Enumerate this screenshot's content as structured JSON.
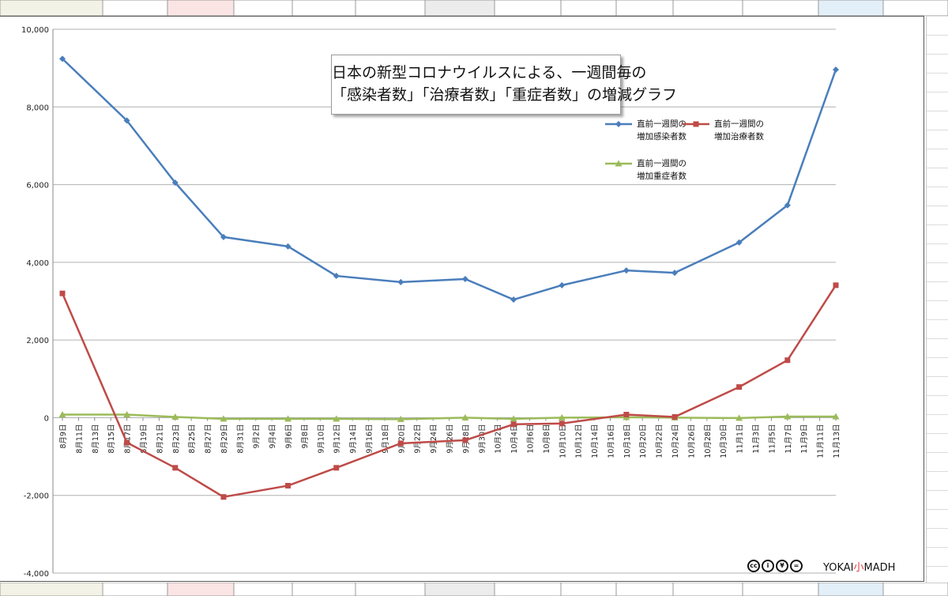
{
  "chart_data": {
    "type": "line",
    "title": [
      "日本の新型コロナウイルスによる、一週間毎の",
      "「感染者数」「治療者数」「重症者数」の増減グラフ"
    ],
    "ylim": [
      -4000,
      10000
    ],
    "yticks": [
      -4000,
      -2000,
      0,
      2000,
      4000,
      6000,
      8000,
      10000
    ],
    "ytick_labels": [
      "-4,000",
      "-2,000",
      "0",
      "2,000",
      "4,000",
      "6,000",
      "8,000",
      "10,000"
    ],
    "grid": true,
    "legend_position": "top-right",
    "x_categories": [
      "8月9日",
      "8月11日",
      "8月13日",
      "8月15日",
      "8月17日",
      "8月19日",
      "8月21日",
      "8月23日",
      "8月25日",
      "8月27日",
      "8月29日",
      "8月31日",
      "9月2日",
      "9月4日",
      "9月6日",
      "9月8日",
      "9月10日",
      "9月12日",
      "9月14日",
      "9月16日",
      "9月18日",
      "9月20日",
      "9月22日",
      "9月24日",
      "9月26日",
      "9月28日",
      "9月30日",
      "10月2日",
      "10月4日",
      "10月6日",
      "10月8日",
      "10月10日",
      "10月12日",
      "10月14日",
      "10月16日",
      "10月18日",
      "10月20日",
      "10月22日",
      "10月24日",
      "10月26日",
      "10月28日",
      "10月30日",
      "11月1日",
      "11月3日",
      "11月5日",
      "11月7日",
      "11月9日",
      "11月11日",
      "11月13日"
    ],
    "series": [
      {
        "name": "直前一週間の\n増加感染者数",
        "color": "#4a7ebb",
        "marker": "diamond",
        "points": [
          [
            0,
            9240
          ],
          [
            4,
            7650
          ],
          [
            7,
            6050
          ],
          [
            10,
            4650
          ],
          [
            14,
            4410
          ],
          [
            17,
            3650
          ],
          [
            21,
            3490
          ],
          [
            25,
            3570
          ],
          [
            28,
            3040
          ],
          [
            31,
            3410
          ],
          [
            35,
            3790
          ],
          [
            38,
            3730
          ],
          [
            42,
            4510
          ],
          [
            45,
            5470
          ],
          [
            48,
            8960
          ]
        ]
      },
      {
        "name": "直前一週間の\n増加治療者数",
        "color": "#be4b48",
        "marker": "square",
        "points": [
          [
            0,
            3200
          ],
          [
            4,
            -640
          ],
          [
            7,
            -1290
          ],
          [
            10,
            -2040
          ],
          [
            14,
            -1750
          ],
          [
            17,
            -1290
          ],
          [
            21,
            -660
          ],
          [
            25,
            -580
          ],
          [
            28,
            -170
          ],
          [
            31,
            -150
          ],
          [
            35,
            80
          ],
          [
            38,
            20
          ],
          [
            42,
            790
          ],
          [
            45,
            1480
          ],
          [
            48,
            3410
          ]
        ]
      },
      {
        "name": "直前一週間の\n増加重症者数",
        "color": "#9bbb59",
        "marker": "triangle",
        "points": [
          [
            0,
            80
          ],
          [
            4,
            80
          ],
          [
            7,
            20
          ],
          [
            10,
            -30
          ],
          [
            14,
            -30
          ],
          [
            17,
            -30
          ],
          [
            21,
            -40
          ],
          [
            25,
            0
          ],
          [
            28,
            -30
          ],
          [
            31,
            0
          ],
          [
            35,
            10
          ],
          [
            38,
            0
          ],
          [
            42,
            -10
          ],
          [
            45,
            30
          ],
          [
            48,
            30
          ]
        ]
      }
    ]
  },
  "footer": {
    "cc_icons": [
      "cc-icon",
      "by-icon",
      "nc-icon",
      "nd-icon"
    ],
    "brand_prefix": "YOKAI",
    "brand_accent": "小",
    "brand_suffix": "MADH"
  }
}
